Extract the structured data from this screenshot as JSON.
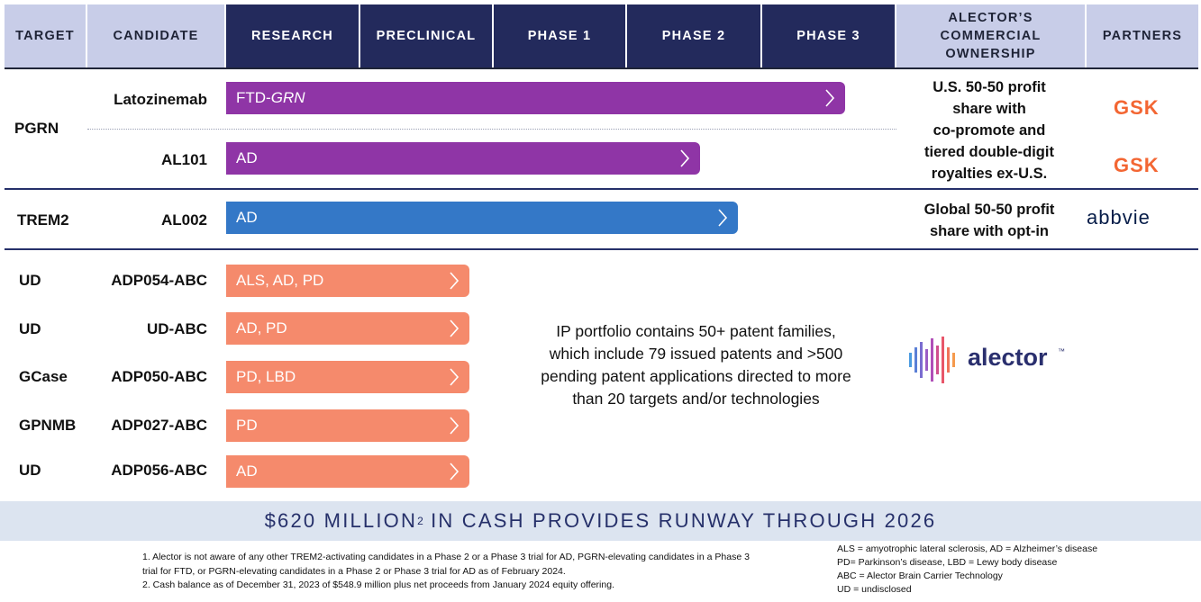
{
  "header": {
    "target": "TARGET",
    "candidate": "CANDIDATE",
    "research": "RESEARCH",
    "preclinical": "PRECLINICAL",
    "phase1": "PHASE 1",
    "phase2": "PHASE 2",
    "phase3": "PHASE 3",
    "ownership_line1": "ALECTOR’S",
    "ownership_line2": "COMMERCIAL",
    "ownership_line3": "OWNERSHIP",
    "partners": "PARTNERS"
  },
  "rows": [
    {
      "target": "PGRN",
      "candidate": "Latozinemab",
      "indication_prefix": "FTD-",
      "indication_italic": "GRN",
      "stage": "Phase 3",
      "color": "#8f35a6"
    },
    {
      "target": "",
      "candidate": "AL101",
      "indication": "AD",
      "stage": "Phase 2",
      "color": "#8f35a6"
    },
    {
      "target": "TREM2",
      "candidate": "AL002",
      "indication": "AD",
      "stage": "Phase 2",
      "color": "#3478c7"
    },
    {
      "target": "UD",
      "candidate": "ADP054-ABC",
      "indication": "ALS, AD, PD",
      "stage": "Research",
      "color": "#f58a6c"
    },
    {
      "target": "UD",
      "candidate": "UD-ABC",
      "indication": "AD, PD",
      "stage": "Research",
      "color": "#f58a6c"
    },
    {
      "target": "GCase",
      "candidate": "ADP050-ABC",
      "indication": "PD, LBD",
      "stage": "Research",
      "color": "#f58a6c"
    },
    {
      "target": "GPNMB",
      "candidate": "ADP027-ABC",
      "indication": "PD",
      "stage": "Research",
      "color": "#f58a6c"
    },
    {
      "target": "UD",
      "candidate": "ADP056-ABC",
      "indication": "AD",
      "stage": "Research",
      "color": "#f58a6c"
    }
  ],
  "ownership": {
    "pgrn": [
      "U.S. 50-50 profit",
      "share with",
      "co-promote and",
      "tiered double-digit",
      "royalties ex-U.S."
    ],
    "trem2": [
      "Global 50-50 profit",
      "share with opt-in"
    ]
  },
  "partners": {
    "gsk": "GSK",
    "abbvie": "abbvie",
    "alector": "alector",
    "alector_tm": "™"
  },
  "ip_text": [
    "IP portfolio contains 50+ patent families,",
    "which include 79 issued patents and >500",
    "pending patent applications directed to more",
    "than 20 targets and/or technologies"
  ],
  "banner": {
    "main": "$620 MILLION",
    "sup": "2",
    "rest": " IN CASH PROVIDES RUNWAY THROUGH 2026"
  },
  "footnotes": [
    "1. Alector is not aware of any other TREM2-activating candidates in a Phase 2 or a Phase 3 trial for AD, PGRN-elevating candidates in a Phase 3",
    "trial for FTD, or PGRN-elevating candidates in a Phase 2 or Phase 3 trial for AD as of February 2024.",
    "2. Cash balance as of December 31, 2023 of $548.9 million plus net proceeds from January 2024 equity offering."
  ],
  "abbreviations": [
    "ALS = amyotrophic lateral sclerosis, AD = Alzheimer’s disease",
    "PD= Parkinson’s disease, LBD = Lewy body disease",
    "ABC = Alector Brain Carrier Technology",
    "UD = undisclosed"
  ],
  "colors": {
    "header_dark": "#232a5c",
    "header_light": "#c8cde8",
    "gsk": "#f36633",
    "abbvie": "#071d49",
    "banner_bg": "#dce4f0"
  }
}
